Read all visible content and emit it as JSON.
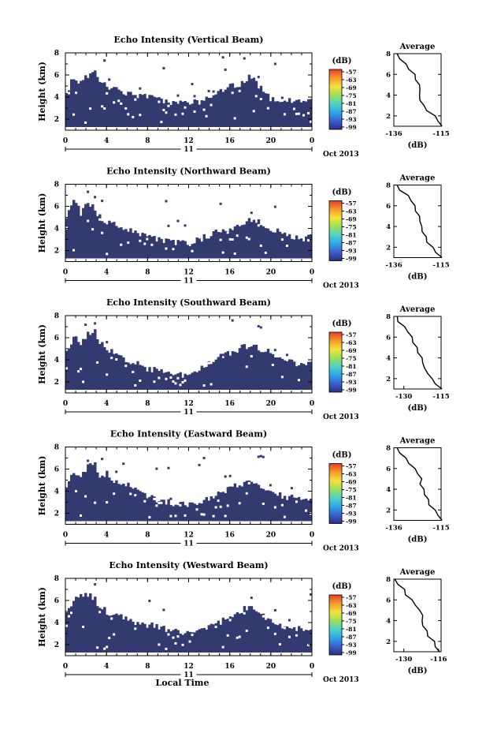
{
  "chart_data": [
    {
      "type": "heatmap",
      "title": "Echo Intensity (Vertical Beam)",
      "ylabel": "Height (km)",
      "xticks": [
        "0",
        "4",
        "8",
        "12",
        "16",
        "20",
        "0"
      ],
      "yticks": [
        "2",
        "4",
        "6",
        "8"
      ],
      "xlim": [
        0,
        24
      ],
      "ylim": [
        1,
        8
      ],
      "date_marker": "11",
      "date_label": "Oct 2013",
      "colorbar": {
        "unit": "(dB)",
        "ticks": [
          "-57",
          "-63",
          "-69",
          "-75",
          "-81",
          "-87",
          "-93",
          "-99"
        ]
      },
      "echo_top_km": [
        {
          "t": 0.2,
          "h": 4.6
        },
        {
          "t": 0.8,
          "h": 5.8
        },
        {
          "t": 1.5,
          "h": 5.2
        },
        {
          "t": 2.2,
          "h": 6.0
        },
        {
          "t": 2.8,
          "h": 6.6
        },
        {
          "t": 3.2,
          "h": 5.6
        },
        {
          "t": 4.0,
          "h": 4.9
        },
        {
          "t": 5.0,
          "h": 4.6
        },
        {
          "t": 6.0,
          "h": 4.4
        },
        {
          "t": 7.0,
          "h": 4.2
        },
        {
          "t": 8.0,
          "h": 4.0
        },
        {
          "t": 9.0,
          "h": 3.8
        },
        {
          "t": 10.0,
          "h": 3.6
        },
        {
          "t": 11.0,
          "h": 3.5
        },
        {
          "t": 12.0,
          "h": 3.5
        },
        {
          "t": 13.0,
          "h": 3.6
        },
        {
          "t": 14.0,
          "h": 4.0
        },
        {
          "t": 15.0,
          "h": 4.6
        },
        {
          "t": 16.0,
          "h": 5.0
        },
        {
          "t": 17.0,
          "h": 5.2
        },
        {
          "t": 18.0,
          "h": 5.8
        },
        {
          "t": 19.0,
          "h": 4.8
        },
        {
          "t": 20.0,
          "h": 3.8
        },
        {
          "t": 21.0,
          "h": 3.6
        },
        {
          "t": 22.0,
          "h": 3.7
        },
        {
          "t": 23.0,
          "h": 3.8
        },
        {
          "t": 24.0,
          "h": 3.7
        }
      ],
      "average": {
        "title": "Average",
        "xlabel": "(dB)",
        "xticks": [
          "-136",
          "-115"
        ],
        "xlim": [
          -136,
          -115
        ],
        "yticks": [
          "2",
          "4",
          "6",
          "8"
        ],
        "ylim": [
          1,
          8
        ],
        "profile": [
          {
            "h": 1.0,
            "db": -115
          },
          {
            "h": 1.5,
            "db": -116
          },
          {
            "h": 2.0,
            "db": -118
          },
          {
            "h": 2.5,
            "db": -121
          },
          {
            "h": 3.0,
            "db": -123
          },
          {
            "h": 3.5,
            "db": -124
          },
          {
            "h": 4.0,
            "db": -125
          },
          {
            "h": 4.5,
            "db": -124
          },
          {
            "h": 5.0,
            "db": -125
          },
          {
            "h": 5.5,
            "db": -126
          },
          {
            "h": 6.0,
            "db": -127
          },
          {
            "h": 6.5,
            "db": -129
          },
          {
            "h": 7.0,
            "db": -131
          },
          {
            "h": 7.5,
            "db": -133
          },
          {
            "h": 8.0,
            "db": -135
          }
        ]
      }
    },
    {
      "type": "heatmap",
      "title": "Echo Intensity (Northward Beam)",
      "ylabel": "Height (km)",
      "xticks": [
        "0",
        "4",
        "8",
        "12",
        "16",
        "20",
        "0"
      ],
      "yticks": [
        "2",
        "4",
        "6",
        "8"
      ],
      "xlim": [
        0,
        24
      ],
      "ylim": [
        1,
        8
      ],
      "date_marker": "11",
      "date_label": "Oct 2013",
      "colorbar": {
        "unit": "(dB)",
        "ticks": [
          "-57",
          "-63",
          "-69",
          "-75",
          "-81",
          "-87",
          "-93",
          "-99"
        ]
      },
      "echo_top_km": [
        {
          "t": 0.2,
          "h": 5.0
        },
        {
          "t": 0.8,
          "h": 6.5
        },
        {
          "t": 1.5,
          "h": 5.4
        },
        {
          "t": 2.2,
          "h": 6.4
        },
        {
          "t": 2.8,
          "h": 6.0
        },
        {
          "t": 3.2,
          "h": 5.2
        },
        {
          "t": 4.0,
          "h": 4.6
        },
        {
          "t": 5.0,
          "h": 4.2
        },
        {
          "t": 6.0,
          "h": 4.0
        },
        {
          "t": 7.0,
          "h": 3.5
        },
        {
          "t": 8.0,
          "h": 3.2
        },
        {
          "t": 9.0,
          "h": 3.0
        },
        {
          "t": 10.0,
          "h": 2.8
        },
        {
          "t": 11.0,
          "h": 2.7
        },
        {
          "t": 12.0,
          "h": 2.6
        },
        {
          "t": 13.0,
          "h": 3.0
        },
        {
          "t": 14.0,
          "h": 3.4
        },
        {
          "t": 15.0,
          "h": 3.8
        },
        {
          "t": 16.0,
          "h": 4.0
        },
        {
          "t": 17.0,
          "h": 4.4
        },
        {
          "t": 18.0,
          "h": 4.8
        },
        {
          "t": 19.0,
          "h": 4.6
        },
        {
          "t": 20.0,
          "h": 4.0
        },
        {
          "t": 21.0,
          "h": 3.6
        },
        {
          "t": 22.0,
          "h": 3.2
        },
        {
          "t": 23.0,
          "h": 3.1
        },
        {
          "t": 24.0,
          "h": 3.2
        }
      ],
      "average": {
        "title": "Average",
        "xlabel": "(dB)",
        "xticks": [
          "-136",
          "-115"
        ],
        "xlim": [
          -136,
          -115
        ],
        "yticks": [
          "2",
          "4",
          "6",
          "8"
        ],
        "ylim": [
          1,
          8
        ],
        "profile": [
          {
            "h": 1.0,
            "db": -115
          },
          {
            "h": 1.5,
            "db": -117
          },
          {
            "h": 2.0,
            "db": -119
          },
          {
            "h": 2.5,
            "db": -121
          },
          {
            "h": 3.0,
            "db": -122
          },
          {
            "h": 3.5,
            "db": -123
          },
          {
            "h": 4.0,
            "db": -124
          },
          {
            "h": 4.5,
            "db": -124
          },
          {
            "h": 5.0,
            "db": -125
          },
          {
            "h": 5.5,
            "db": -126
          },
          {
            "h": 6.0,
            "db": -127
          },
          {
            "h": 6.5,
            "db": -128
          },
          {
            "h": 7.0,
            "db": -130
          },
          {
            "h": 7.5,
            "db": -133
          },
          {
            "h": 8.0,
            "db": -135
          }
        ]
      }
    },
    {
      "type": "heatmap",
      "title": "Echo Intensity (Southward Beam)",
      "ylabel": "Height (km)",
      "xticks": [
        "0",
        "4",
        "8",
        "12",
        "16",
        "20",
        "0"
      ],
      "yticks": [
        "2",
        "4",
        "6",
        "8"
      ],
      "xlim": [
        0,
        24
      ],
      "ylim": [
        1,
        8
      ],
      "date_marker": "11",
      "date_label": "Oct 2013",
      "colorbar": {
        "unit": "(dB)",
        "ticks": [
          "-57",
          "-63",
          "-69",
          "-75",
          "-81",
          "-87",
          "-93",
          "-99"
        ]
      },
      "echo_top_km": [
        {
          "t": 0.2,
          "h": 4.8
        },
        {
          "t": 0.8,
          "h": 6.2
        },
        {
          "t": 1.5,
          "h": 5.6
        },
        {
          "t": 2.2,
          "h": 6.4
        },
        {
          "t": 2.8,
          "h": 6.8
        },
        {
          "t": 3.2,
          "h": 5.6
        },
        {
          "t": 4.0,
          "h": 5.0
        },
        {
          "t": 5.0,
          "h": 4.4
        },
        {
          "t": 6.0,
          "h": 4.0
        },
        {
          "t": 7.0,
          "h": 3.6
        },
        {
          "t": 8.0,
          "h": 3.2
        },
        {
          "t": 9.0,
          "h": 3.0
        },
        {
          "t": 10.0,
          "h": 2.8
        },
        {
          "t": 11.0,
          "h": 2.6
        },
        {
          "t": 12.0,
          "h": 2.7
        },
        {
          "t": 13.0,
          "h": 3.0
        },
        {
          "t": 14.0,
          "h": 3.6
        },
        {
          "t": 15.0,
          "h": 4.2
        },
        {
          "t": 16.0,
          "h": 4.6
        },
        {
          "t": 17.0,
          "h": 5.0
        },
        {
          "t": 18.0,
          "h": 5.4
        },
        {
          "t": 19.0,
          "h": 5.0
        },
        {
          "t": 20.0,
          "h": 4.6
        },
        {
          "t": 21.0,
          "h": 4.2
        },
        {
          "t": 22.0,
          "h": 3.8
        },
        {
          "t": 23.0,
          "h": 3.6
        },
        {
          "t": 24.0,
          "h": 3.6
        }
      ],
      "average": {
        "title": "Average",
        "xlabel": "(dB)",
        "xticks": [
          "-130",
          "-115"
        ],
        "xlim": [
          -134,
          -115
        ],
        "yticks": [
          "2",
          "4",
          "6",
          "8"
        ],
        "ylim": [
          1,
          8
        ],
        "profile": [
          {
            "h": 1.0,
            "db": -115
          },
          {
            "h": 1.5,
            "db": -117
          },
          {
            "h": 2.0,
            "db": -119
          },
          {
            "h": 2.5,
            "db": -120
          },
          {
            "h": 3.0,
            "db": -122
          },
          {
            "h": 3.5,
            "db": -122
          },
          {
            "h": 4.0,
            "db": -123
          },
          {
            "h": 4.5,
            "db": -124
          },
          {
            "h": 5.0,
            "db": -125
          },
          {
            "h": 5.5,
            "db": -126
          },
          {
            "h": 6.0,
            "db": -127
          },
          {
            "h": 6.5,
            "db": -128
          },
          {
            "h": 7.0,
            "db": -130
          },
          {
            "h": 7.5,
            "db": -132
          },
          {
            "h": 8.0,
            "db": -133
          }
        ]
      }
    },
    {
      "type": "heatmap",
      "title": "Echo Intensity (Eastward Beam)",
      "ylabel": "Height (km)",
      "xticks": [
        "0",
        "4",
        "8",
        "12",
        "16",
        "20",
        "0"
      ],
      "yticks": [
        "2",
        "4",
        "6",
        "8"
      ],
      "xlim": [
        0,
        24
      ],
      "ylim": [
        1,
        8
      ],
      "date_marker": "11",
      "date_label": "Oct 2013",
      "colorbar": {
        "unit": "(dB)",
        "ticks": [
          "-57",
          "-63",
          "-69",
          "-75",
          "-81",
          "-87",
          "-93",
          "-99"
        ]
      },
      "echo_top_km": [
        {
          "t": 0.2,
          "h": 4.6
        },
        {
          "t": 0.8,
          "h": 5.8
        },
        {
          "t": 1.5,
          "h": 5.2
        },
        {
          "t": 2.2,
          "h": 6.2
        },
        {
          "t": 2.8,
          "h": 6.6
        },
        {
          "t": 3.2,
          "h": 5.4
        },
        {
          "t": 4.0,
          "h": 5.6
        },
        {
          "t": 5.0,
          "h": 4.8
        },
        {
          "t": 6.0,
          "h": 4.6
        },
        {
          "t": 7.0,
          "h": 4.0
        },
        {
          "t": 8.0,
          "h": 3.6
        },
        {
          "t": 9.0,
          "h": 3.2
        },
        {
          "t": 10.0,
          "h": 3.0
        },
        {
          "t": 11.0,
          "h": 2.8
        },
        {
          "t": 12.0,
          "h": 2.8
        },
        {
          "t": 13.0,
          "h": 3.0
        },
        {
          "t": 14.0,
          "h": 3.4
        },
        {
          "t": 15.0,
          "h": 3.8
        },
        {
          "t": 16.0,
          "h": 4.2
        },
        {
          "t": 17.0,
          "h": 4.6
        },
        {
          "t": 18.0,
          "h": 5.0
        },
        {
          "t": 19.0,
          "h": 4.2
        },
        {
          "t": 20.0,
          "h": 3.8
        },
        {
          "t": 21.0,
          "h": 3.6
        },
        {
          "t": 22.0,
          "h": 3.4
        },
        {
          "t": 23.0,
          "h": 3.4
        },
        {
          "t": 24.0,
          "h": 3.5
        }
      ],
      "average": {
        "title": "Average",
        "xlabel": "(dB)",
        "xticks": [
          "-136",
          "-115"
        ],
        "xlim": [
          -136,
          -115
        ],
        "yticks": [
          "2",
          "4",
          "6",
          "8"
        ],
        "ylim": [
          1,
          8
        ],
        "profile": [
          {
            "h": 1.0,
            "db": -115
          },
          {
            "h": 1.5,
            "db": -116
          },
          {
            "h": 2.0,
            "db": -118
          },
          {
            "h": 2.5,
            "db": -120
          },
          {
            "h": 3.0,
            "db": -121
          },
          {
            "h": 3.5,
            "db": -122
          },
          {
            "h": 4.0,
            "db": -123
          },
          {
            "h": 4.5,
            "db": -124
          },
          {
            "h": 5.0,
            "db": -124
          },
          {
            "h": 5.5,
            "db": -125
          },
          {
            "h": 6.0,
            "db": -127
          },
          {
            "h": 6.5,
            "db": -129
          },
          {
            "h": 7.0,
            "db": -131
          },
          {
            "h": 7.5,
            "db": -133
          },
          {
            "h": 8.0,
            "db": -135
          }
        ]
      }
    },
    {
      "type": "heatmap",
      "title": "Echo Intensity (Westward Beam)",
      "ylabel": "Height (km)",
      "xticks": [
        "0",
        "4",
        "8",
        "12",
        "16",
        "20",
        "0"
      ],
      "yticks": [
        "2",
        "4",
        "6",
        "8"
      ],
      "xlim": [
        0,
        24
      ],
      "ylim": [
        1,
        8
      ],
      "date_marker": "11",
      "date_label": "Oct 2013",
      "xlabel": "Local Time",
      "colorbar": {
        "unit": "(dB)",
        "ticks": [
          "-57",
          "-63",
          "-69",
          "-75",
          "-81",
          "-87",
          "-93",
          "-99"
        ]
      },
      "echo_top_km": [
        {
          "t": 0.2,
          "h": 4.8
        },
        {
          "t": 0.8,
          "h": 6.0
        },
        {
          "t": 1.5,
          "h": 6.4
        },
        {
          "t": 2.2,
          "h": 6.6
        },
        {
          "t": 2.8,
          "h": 6.2
        },
        {
          "t": 3.2,
          "h": 5.6
        },
        {
          "t": 4.0,
          "h": 5.0
        },
        {
          "t": 5.0,
          "h": 4.6
        },
        {
          "t": 6.0,
          "h": 4.4
        },
        {
          "t": 7.0,
          "h": 4.0
        },
        {
          "t": 8.0,
          "h": 3.8
        },
        {
          "t": 9.0,
          "h": 3.6
        },
        {
          "t": 10.0,
          "h": 3.4
        },
        {
          "t": 11.0,
          "h": 3.2
        },
        {
          "t": 12.0,
          "h": 3.0
        },
        {
          "t": 13.0,
          "h": 3.2
        },
        {
          "t": 14.0,
          "h": 3.6
        },
        {
          "t": 15.0,
          "h": 4.0
        },
        {
          "t": 16.0,
          "h": 4.6
        },
        {
          "t": 17.0,
          "h": 5.0
        },
        {
          "t": 18.0,
          "h": 5.6
        },
        {
          "t": 19.0,
          "h": 4.8
        },
        {
          "t": 20.0,
          "h": 4.0
        },
        {
          "t": 21.0,
          "h": 3.6
        },
        {
          "t": 22.0,
          "h": 3.4
        },
        {
          "t": 23.0,
          "h": 3.4
        },
        {
          "t": 24.0,
          "h": 3.5
        }
      ],
      "average": {
        "title": "Average",
        "xlabel": "(dB)",
        "xticks": [
          "-130",
          "-116"
        ],
        "xlim": [
          -134,
          -115
        ],
        "yticks": [
          "2",
          "4",
          "6",
          "8"
        ],
        "ylim": [
          1,
          8
        ],
        "profile": [
          {
            "h": 1.0,
            "db": -116
          },
          {
            "h": 1.5,
            "db": -117
          },
          {
            "h": 2.0,
            "db": -118
          },
          {
            "h": 2.5,
            "db": -120
          },
          {
            "h": 3.0,
            "db": -121
          },
          {
            "h": 3.5,
            "db": -122
          },
          {
            "h": 4.0,
            "db": -123
          },
          {
            "h": 4.5,
            "db": -122
          },
          {
            "h": 5.0,
            "db": -124
          },
          {
            "h": 5.5,
            "db": -125
          },
          {
            "h": 6.0,
            "db": -127
          },
          {
            "h": 6.5,
            "db": -129
          },
          {
            "h": 7.0,
            "db": -130
          },
          {
            "h": 7.5,
            "db": -132
          },
          {
            "h": 8.0,
            "db": -134
          }
        ]
      }
    }
  ],
  "colors": {
    "echo_fill": "#323a70",
    "colorbar_stops": [
      "#2a2f80",
      "#3b5fd0",
      "#2ca8e6",
      "#4fd3c4",
      "#9be05a",
      "#f5e23a",
      "#f59a2a",
      "#e83a2a"
    ]
  }
}
